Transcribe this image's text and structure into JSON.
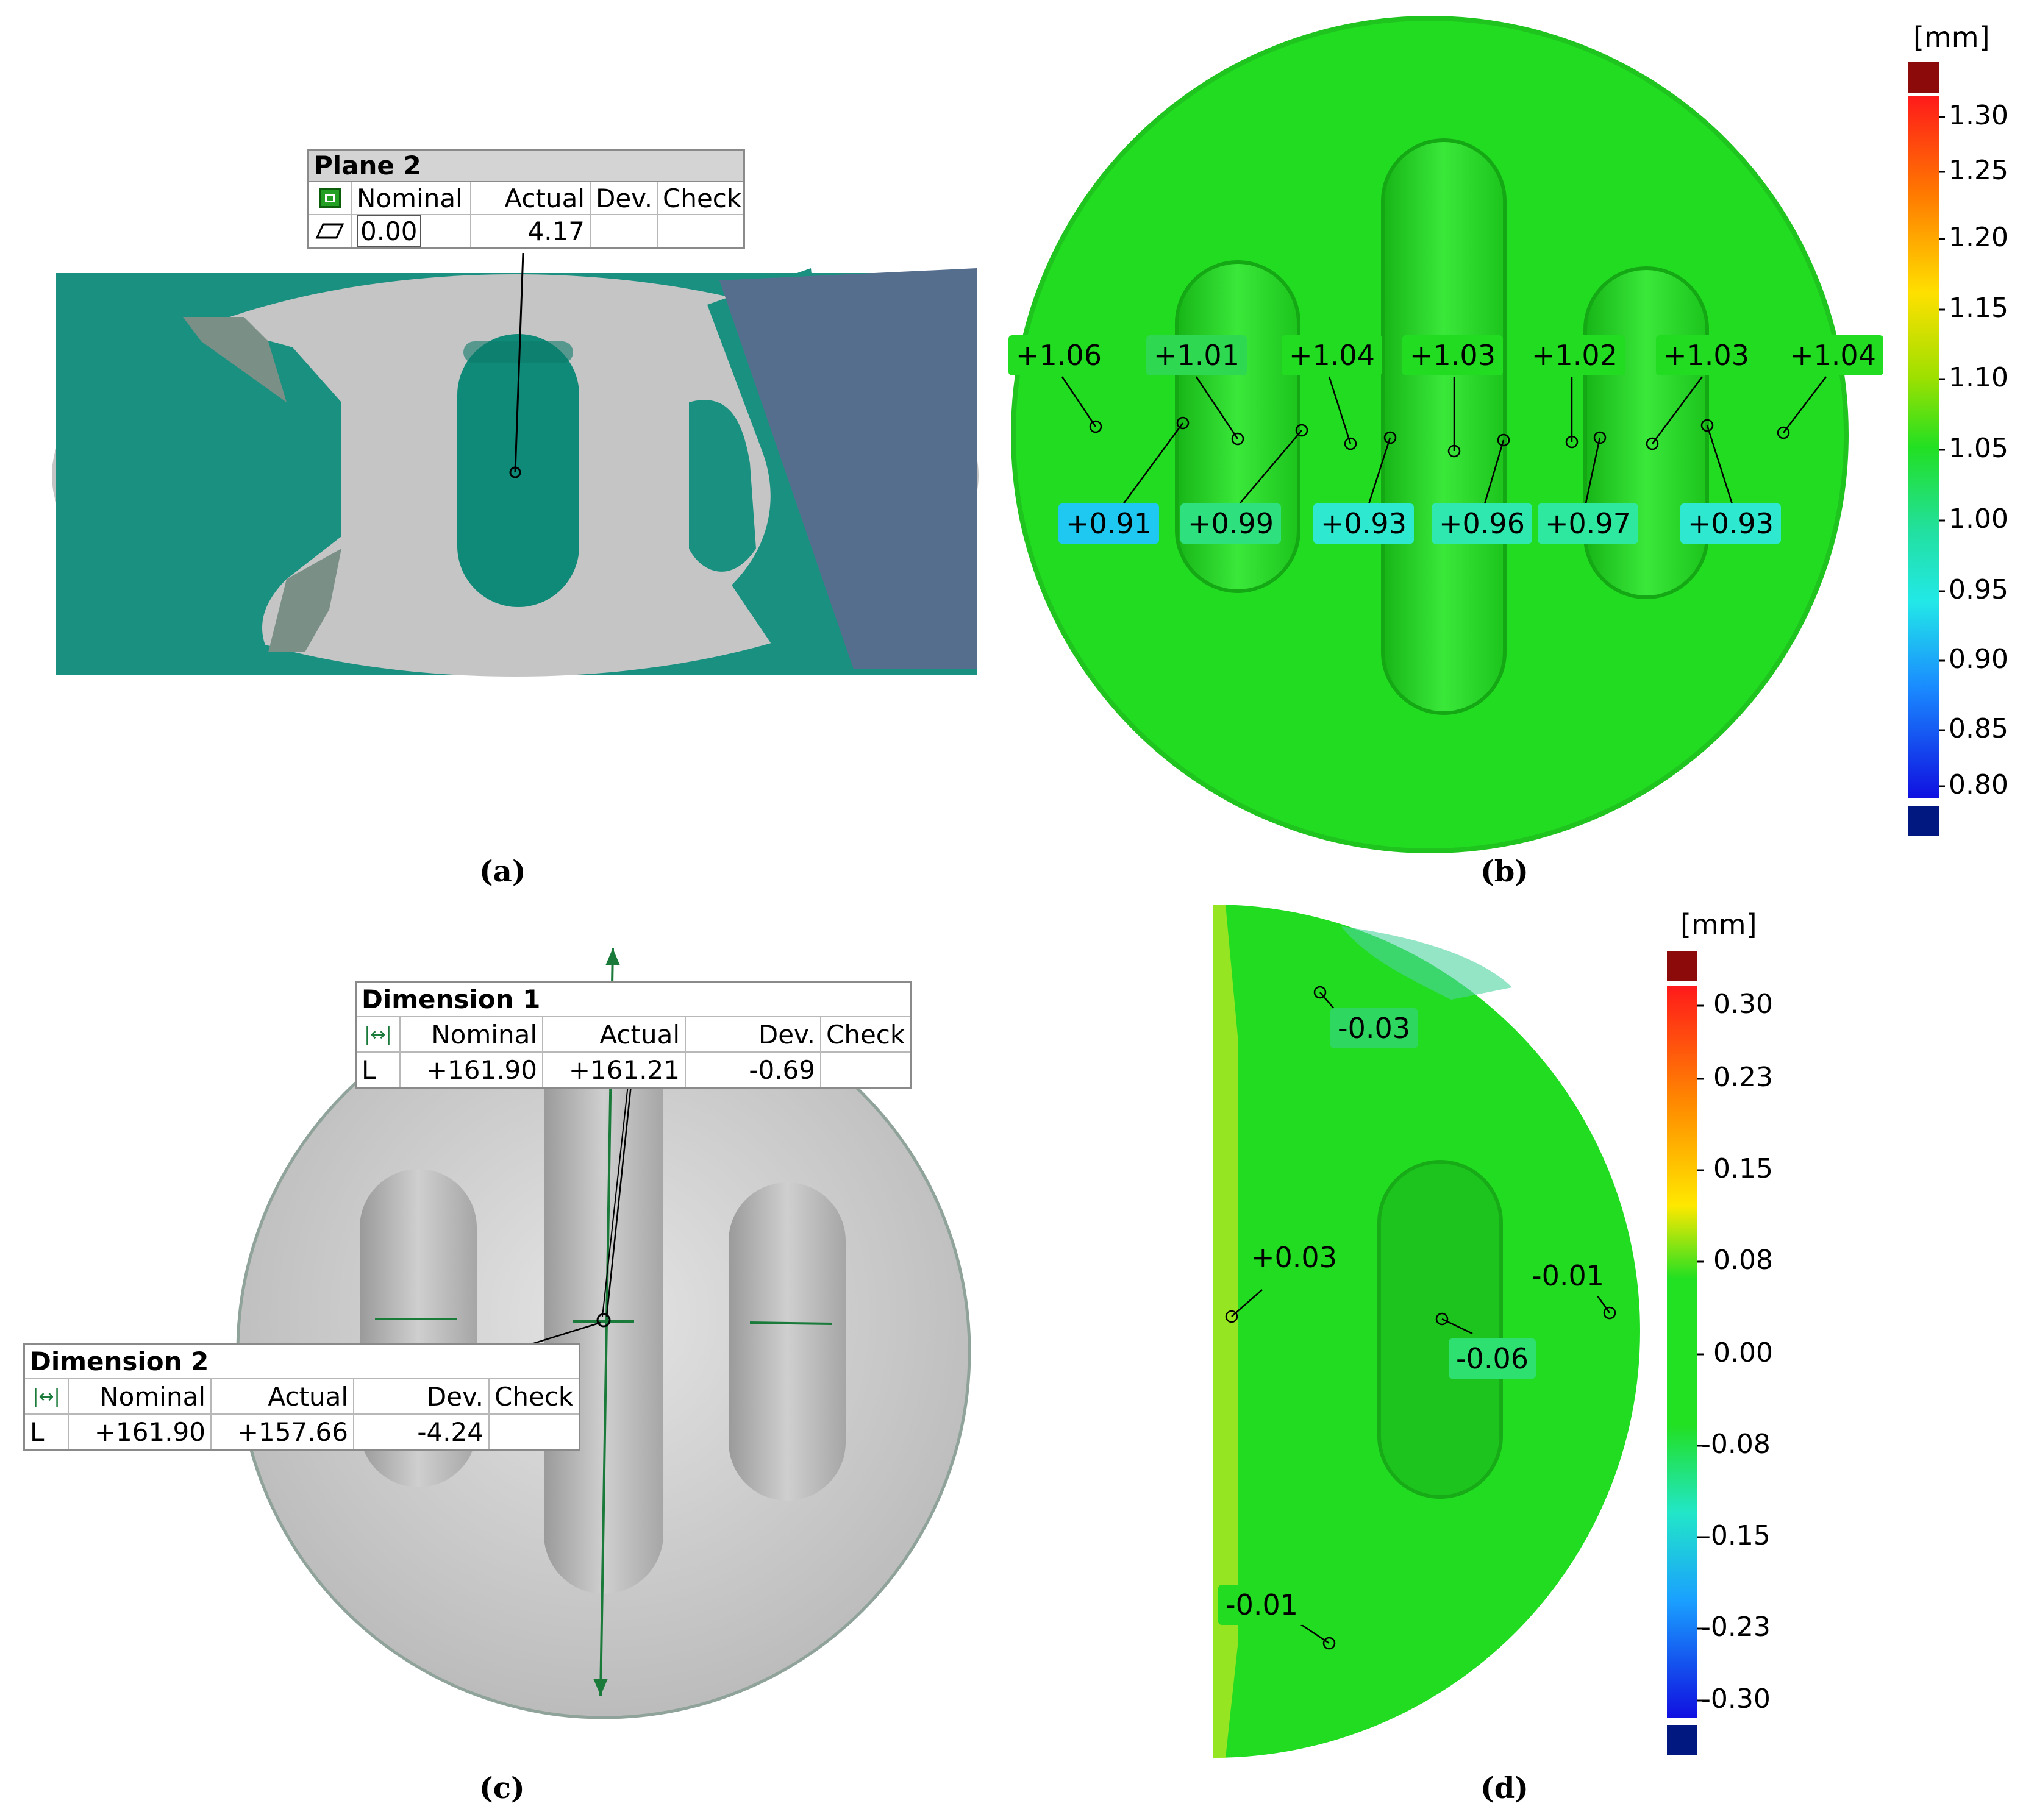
{
  "panel_a": {
    "caption": "(a)",
    "table": {
      "title": "Plane 2",
      "headers": [
        "Nominal",
        "Actual",
        "Dev.",
        "Check"
      ],
      "nominal": "0.00",
      "actual": "4.17",
      "dev": "",
      "check": ""
    },
    "icons": [
      "plane-feature-icon",
      "flatness-icon"
    ]
  },
  "panel_b": {
    "caption": "(b)",
    "unit": "[mm]",
    "scale_ticks": [
      "1.30",
      "1.25",
      "1.20",
      "1.15",
      "1.10",
      "1.05",
      "1.00",
      "0.95",
      "0.90",
      "0.85",
      "0.80"
    ],
    "labels_top": [
      "+1.06",
      "+1.01",
      "+1.04",
      "+1.03",
      "+1.02",
      "+1.03",
      "+1.04"
    ],
    "labels_bottom": [
      "+0.91",
      "+0.99",
      "+0.93",
      "+0.96",
      "+0.97",
      "+0.93"
    ]
  },
  "panel_c": {
    "caption": "(c)",
    "table1": {
      "title": "Dimension 1",
      "headers": [
        "Nominal",
        "Actual",
        "Dev.",
        "Check"
      ],
      "type": "L",
      "nominal": "+161.90",
      "actual": "+161.21",
      "dev": "-0.69",
      "check": ""
    },
    "table2": {
      "title": "Dimension 2",
      "headers": [
        "Nominal",
        "Actual",
        "Dev.",
        "Check"
      ],
      "type": "L",
      "nominal": "+161.90",
      "actual": "+157.66",
      "dev": "-4.24",
      "check": ""
    },
    "icons": [
      "length-dimension-icon"
    ]
  },
  "panel_d": {
    "caption": "(d)",
    "unit": "[mm]",
    "scale_ticks": [
      "0.30",
      "0.23",
      "0.15",
      "0.08",
      "0.00",
      "-0.08",
      "-0.15",
      "-0.23",
      "-0.30"
    ],
    "labels": [
      "-0.03",
      "+0.03",
      "-0.01",
      "-0.06",
      "-0.01"
    ]
  },
  "colors": {
    "deviation_green": "#22e022",
    "deviation_cyan": "#22e6c8",
    "scan_grey": "#c8c8c8",
    "teal_plane": "#1a9080",
    "blue_plane": "#566e8e",
    "dimension_green": "#1a7a3a"
  }
}
